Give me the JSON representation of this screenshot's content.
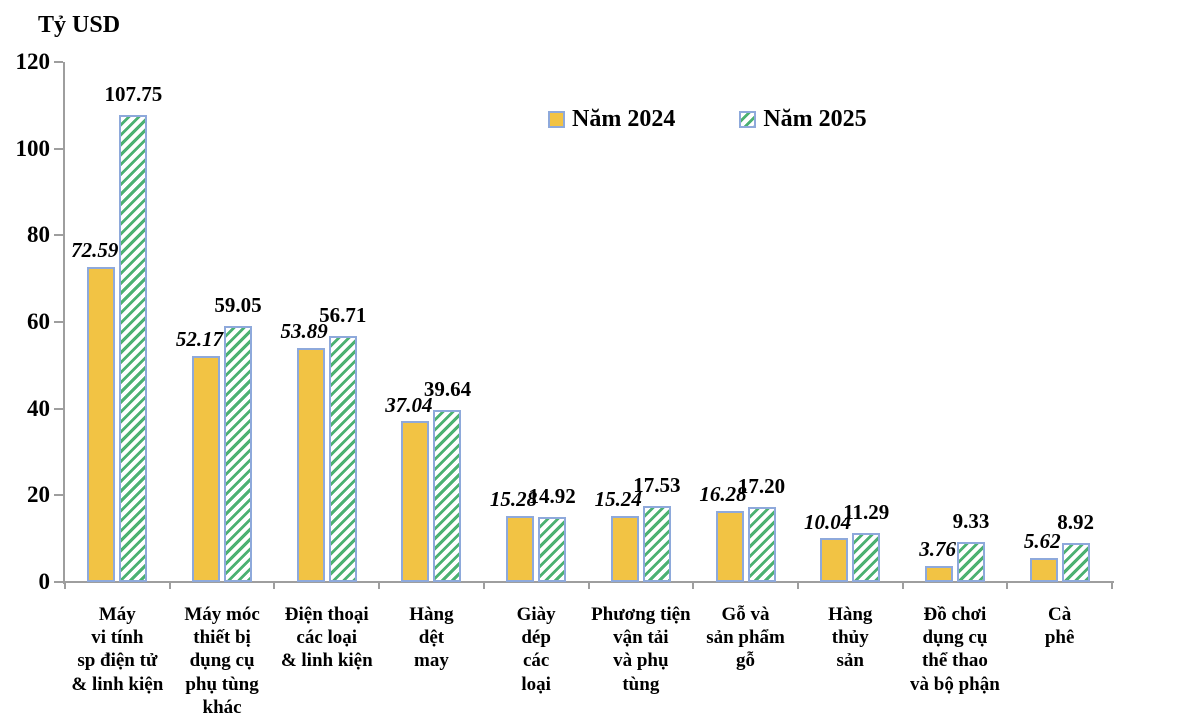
{
  "title": "Tỷ USD",
  "chart_data": {
    "type": "bar",
    "title": "",
    "ylabel": "Tỷ USD",
    "xlabel": "",
    "ylim": [
      0,
      120
    ],
    "yticks": [
      0,
      20,
      40,
      60,
      80,
      100,
      120
    ],
    "grid": false,
    "legend_position": "top-center",
    "categories": [
      "Máy vi tính sp điện tử & linh kiện",
      "Máy móc thiết bị dụng cụ phụ tùng khác",
      "Điện thoại các loại & linh kiện",
      "Hàng dệt may",
      "Giày dép các loại",
      "Phương tiện vận tải và phụ tùng",
      "Gỗ và sản phẩm gỗ",
      "Hàng thủy sản",
      "Đồ chơi dụng cụ thể thao và bộ phận",
      "Cà phê"
    ],
    "category_lines": [
      [
        "Máy",
        "vi tính",
        "sp điện tử",
        "& linh kiện"
      ],
      [
        "Máy móc",
        "thiết bị",
        "dụng cụ",
        "phụ tùng",
        "khác"
      ],
      [
        "Điện thoại",
        "các loại",
        "& linh kiện"
      ],
      [
        "Hàng",
        "dệt",
        "may"
      ],
      [
        "Giày",
        "dép",
        "các",
        "loại"
      ],
      [
        "Phương tiện",
        "vận tải",
        "và phụ",
        "tùng"
      ],
      [
        "Gỗ và",
        "sản phẩm",
        "gỗ"
      ],
      [
        "Hàng",
        "thủy",
        "sản"
      ],
      [
        "Đồ chơi",
        "dụng cụ",
        "thể thao",
        "và bộ phận"
      ],
      [
        "Cà",
        "phê"
      ]
    ],
    "series": [
      {
        "name": "Năm 2024",
        "style": "solid",
        "values": [
          72.59,
          52.17,
          53.89,
          37.04,
          15.28,
          15.24,
          16.28,
          10.04,
          3.76,
          5.62
        ]
      },
      {
        "name": "Năm 2025",
        "style": "hatched",
        "values": [
          107.75,
          59.05,
          56.71,
          39.64,
          14.92,
          17.53,
          17.2,
          11.29,
          9.33,
          8.92
        ]
      }
    ]
  },
  "colors": {
    "bar_2024_fill": "#f2c344",
    "bar_border": "#8ea9db",
    "hatch_green": "#4cb172",
    "hatch_background": "#ffffff",
    "axis": "#9e9e9e",
    "text": "#000000",
    "background": "#ffffff"
  }
}
